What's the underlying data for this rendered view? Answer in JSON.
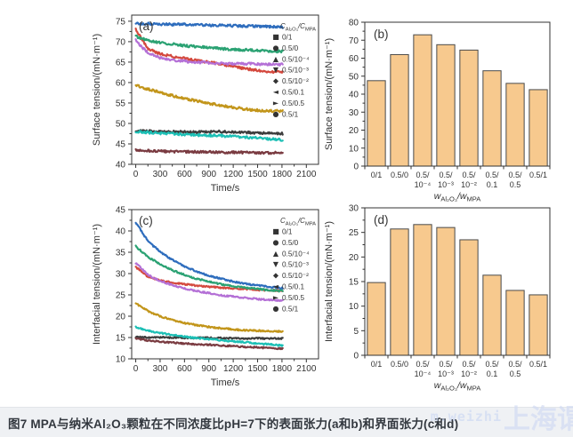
{
  "caption": {
    "text": "图7 MPA与纳米Al₂O₃颗粒在不同浓度比pH=7下的表面张力(a和b)和界面张力(c和d)"
  },
  "watermark": {
    "latin": "m.weizhi",
    "cjk": "上海谓"
  },
  "colors": {
    "axis": "#333333",
    "bar_fill": "#f7c98e",
    "bar_edge": "#4a4a4a",
    "caption_bg": "#eff1f4",
    "series": {
      "black": "#3d3d3d",
      "red": "#d4493e",
      "blue": "#2e6dbd",
      "green": "#2ba273",
      "purple": "#b470d6",
      "gold": "#c2951a",
      "cyan": "#1cbfb5",
      "brown": "#7a3b41"
    }
  },
  "chart_data": [
    {
      "id": "a",
      "type": "line",
      "panel_label": "(a)",
      "xlabel": "Time/s",
      "ylabel": "Surface tension/(mN·m⁻¹)",
      "xlim": [
        -50,
        2250
      ],
      "ylim": [
        40,
        76.5
      ],
      "xticks": [
        0,
        300,
        600,
        900,
        1200,
        1500,
        1800,
        2100
      ],
      "yticks": [
        40,
        45,
        50,
        55,
        60,
        65,
        70,
        75
      ],
      "grid": false,
      "legend_position": "top-right-inside",
      "legend_title": "C_[Al₂O₃]/C_[MPA]",
      "noise": 0.3,
      "x": [
        0,
        150,
        300,
        450,
        600,
        750,
        900,
        1050,
        1200,
        1350,
        1500,
        1650,
        1800
      ],
      "series": [
        {
          "name": "0/1",
          "color": "#3d3d3d",
          "marker": "square",
          "values": [
            48.2,
            48.1,
            48.0,
            48.0,
            47.9,
            47.9,
            47.9,
            48.0,
            47.8,
            47.8,
            47.7,
            47.6,
            47.5
          ]
        },
        {
          "name": "0.5/0",
          "color": "#d4493e",
          "marker": "circle",
          "values": [
            73.0,
            68.3,
            67.0,
            66.4,
            65.9,
            65.4,
            65.0,
            64.5,
            63.9,
            63.4,
            63.0,
            62.7,
            62.5
          ]
        },
        {
          "name": "0.5/10⁻⁴",
          "color": "#2e6dbd",
          "marker": "triangle-up",
          "values": [
            74.5,
            74.4,
            74.3,
            74.2,
            74.2,
            74.1,
            74.0,
            74.0,
            73.9,
            73.8,
            73.8,
            73.7,
            73.6
          ]
        },
        {
          "name": "0.5/10⁻³",
          "color": "#2ba273",
          "marker": "triangle-down",
          "values": [
            71.3,
            70.3,
            69.8,
            69.4,
            69.0,
            68.8,
            68.5,
            68.3,
            68.1,
            68.0,
            67.8,
            67.7,
            67.6
          ]
        },
        {
          "name": "0.5/10⁻²",
          "color": "#b470d6",
          "marker": "diamond",
          "values": [
            70.3,
            67.2,
            66.0,
            65.5,
            65.2,
            65.0,
            64.8,
            64.7,
            64.6,
            64.6,
            64.5,
            64.5,
            64.4
          ]
        },
        {
          "name": "0.5/0.1",
          "color": "#c2951a",
          "marker": "triangle-left",
          "values": [
            59.3,
            58.4,
            57.6,
            56.8,
            56.1,
            55.5,
            54.9,
            54.4,
            53.9,
            53.5,
            53.2,
            53.1,
            53.0
          ]
        },
        {
          "name": "0.5/0.5",
          "color": "#1cbfb5",
          "marker": "triangle-right",
          "values": [
            48.0,
            47.8,
            47.6,
            47.5,
            47.3,
            47.2,
            47.1,
            47.0,
            46.8,
            46.6,
            46.4,
            46.2,
            46.0
          ]
        },
        {
          "name": "0.5/1",
          "color": "#7a3b41",
          "marker": "circle",
          "values": [
            43.5,
            43.3,
            43.2,
            43.1,
            43.1,
            43.0,
            43.0,
            42.9,
            42.9,
            42.9,
            42.8,
            42.8,
            42.8
          ]
        }
      ]
    },
    {
      "id": "b",
      "type": "bar",
      "panel_label": "(b)",
      "xlabel": "w_[Al₂O₃]/w_[MPA]",
      "ylabel": "Surface tension/(mN·m⁻¹)",
      "ylim": [
        0,
        80
      ],
      "yticks": [
        0,
        10,
        20,
        30,
        40,
        50,
        60,
        70,
        80
      ],
      "grid": false,
      "categories": [
        "0/1",
        "0.5/0",
        "0.5/\n10⁻⁴",
        "0.5/\n10⁻³",
        "0.5/\n10⁻²",
        "0.5/\n0.1",
        "0.5/\n0.5",
        "0.5/1"
      ],
      "values": [
        47.5,
        62,
        73,
        67.5,
        64.5,
        53,
        46,
        42.5
      ],
      "bar_fill": "#f7c98e",
      "bar_edge": "#4a4a4a"
    },
    {
      "id": "c",
      "type": "line",
      "panel_label": "(c)",
      "xlabel": "Time/s",
      "ylabel": "Interfacial tension/(mN·m⁻¹)",
      "xlim": [
        -50,
        2250
      ],
      "ylim": [
        10,
        45
      ],
      "xticks": [
        0,
        300,
        600,
        900,
        1200,
        1500,
        1800,
        2100
      ],
      "yticks": [
        10,
        15,
        20,
        25,
        30,
        35,
        40,
        45
      ],
      "grid": false,
      "legend_position": "top-right-inside",
      "legend_title": "C_[Al₂O₃]/C_[MPA]",
      "noise": 0.18,
      "x": [
        0,
        150,
        300,
        450,
        600,
        750,
        900,
        1050,
        1200,
        1350,
        1500,
        1650,
        1800
      ],
      "series": [
        {
          "name": "0/1",
          "color": "#3d3d3d",
          "marker": "square",
          "values": [
            15.1,
            15.0,
            15.0,
            15.0,
            14.9,
            14.9,
            14.9,
            14.9,
            14.8,
            14.8,
            14.8,
            14.8,
            14.8
          ]
        },
        {
          "name": "0.5/0",
          "color": "#d4493e",
          "marker": "circle",
          "values": [
            31.5,
            29.3,
            28.4,
            27.9,
            27.5,
            27.2,
            26.9,
            26.7,
            26.5,
            26.4,
            26.2,
            26.1,
            26.0
          ]
        },
        {
          "name": "0.5/10⁻⁴",
          "color": "#2e6dbd",
          "marker": "triangle-up",
          "values": [
            42.0,
            37.6,
            35.1,
            33.2,
            31.7,
            30.5,
            29.5,
            28.8,
            28.1,
            27.6,
            27.2,
            26.9,
            26.6
          ]
        },
        {
          "name": "0.5/10⁻³",
          "color": "#2ba273",
          "marker": "triangle-down",
          "values": [
            36.4,
            33.9,
            32.2,
            30.8,
            29.7,
            28.8,
            28.1,
            27.5,
            27.0,
            26.7,
            26.4,
            26.1,
            25.9
          ]
        },
        {
          "name": "0.5/10⁻²",
          "color": "#b470d6",
          "marker": "diamond",
          "values": [
            32.5,
            29.7,
            28.3,
            27.3,
            26.5,
            25.9,
            25.4,
            24.9,
            24.6,
            24.3,
            24.0,
            23.8,
            23.6
          ]
        },
        {
          "name": "0.5/0.1",
          "color": "#c2951a",
          "marker": "triangle-left",
          "values": [
            23.0,
            21.2,
            20.0,
            19.1,
            18.4,
            17.9,
            17.5,
            17.2,
            16.9,
            16.7,
            16.6,
            16.5,
            16.4
          ]
        },
        {
          "name": "0.5/0.5",
          "color": "#1cbfb5",
          "marker": "triangle-right",
          "values": [
            17.5,
            16.6,
            16.1,
            15.6,
            15.2,
            14.9,
            14.6,
            14.4,
            14.1,
            13.9,
            13.6,
            13.4,
            13.1
          ]
        },
        {
          "name": "0.5/1",
          "color": "#7a3b41",
          "marker": "circle",
          "values": [
            14.8,
            14.3,
            14.0,
            13.8,
            13.6,
            13.4,
            13.3,
            13.1,
            13.0,
            12.8,
            12.7,
            12.5,
            12.4
          ]
        }
      ]
    },
    {
      "id": "d",
      "type": "bar",
      "panel_label": "(d)",
      "xlabel": "w_[Al₂O₃]/w_[MPA]",
      "ylabel": "Interfacial tension/(mN·m⁻¹)",
      "ylim": [
        0,
        30
      ],
      "yticks": [
        0,
        5,
        10,
        15,
        20,
        25,
        30
      ],
      "grid": false,
      "categories": [
        "0/1",
        "0.5/0",
        "0.5/\n10⁻⁴",
        "0.5/\n10⁻³",
        "0.5/\n10⁻²",
        "0.5/\n0.1",
        "0.5/\n0.5",
        "0.5/1"
      ],
      "values": [
        14.8,
        25.7,
        26.6,
        26.0,
        23.5,
        16.3,
        13.2,
        12.3
      ],
      "bar_fill": "#f7c98e",
      "bar_edge": "#4a4a4a"
    }
  ]
}
